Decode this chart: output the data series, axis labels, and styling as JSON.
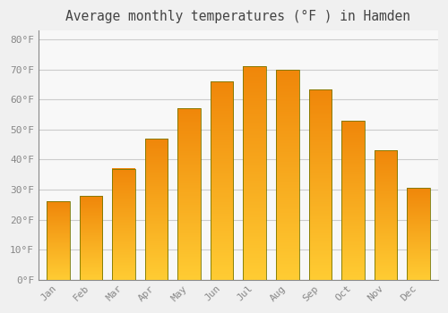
{
  "title": "Average monthly temperatures (°F ) in Hamden",
  "months": [
    "Jan",
    "Feb",
    "Mar",
    "Apr",
    "May",
    "Jun",
    "Jul",
    "Aug",
    "Sep",
    "Oct",
    "Nov",
    "Dec"
  ],
  "values": [
    26,
    28,
    37,
    47,
    57,
    66,
    71,
    70,
    63.5,
    53,
    43,
    30.5
  ],
  "bar_color_bottom": "#FFCC33",
  "bar_color_top": "#F0870A",
  "bar_edge_color": "#888800",
  "background_color": "#F0F0F0",
  "plot_bg_color": "#F8F8F8",
  "grid_color": "#CCCCCC",
  "yticks": [
    0,
    10,
    20,
    30,
    40,
    50,
    60,
    70,
    80
  ],
  "ylim": [
    0,
    83
  ],
  "title_fontsize": 10.5,
  "tick_fontsize": 8,
  "bar_width": 0.7,
  "gradient_steps": 100
}
